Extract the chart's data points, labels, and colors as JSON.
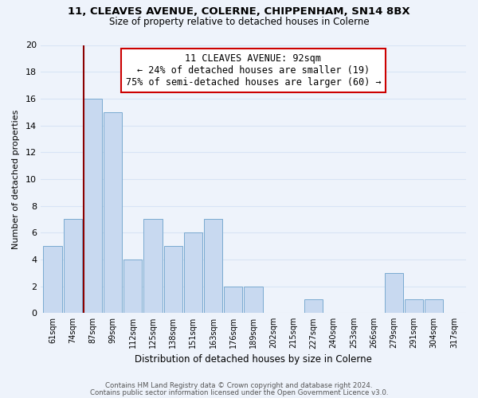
{
  "title1": "11, CLEAVES AVENUE, COLERNE, CHIPPENHAM, SN14 8BX",
  "title2": "Size of property relative to detached houses in Colerne",
  "xlabel": "Distribution of detached houses by size in Colerne",
  "ylabel": "Number of detached properties",
  "bar_labels": [
    "61sqm",
    "74sqm",
    "87sqm",
    "99sqm",
    "112sqm",
    "125sqm",
    "138sqm",
    "151sqm",
    "163sqm",
    "176sqm",
    "189sqm",
    "202sqm",
    "215sqm",
    "227sqm",
    "240sqm",
    "253sqm",
    "266sqm",
    "279sqm",
    "291sqm",
    "304sqm",
    "317sqm"
  ],
  "bar_heights": [
    5,
    7,
    16,
    15,
    4,
    7,
    5,
    6,
    7,
    2,
    2,
    0,
    0,
    1,
    0,
    0,
    0,
    3,
    1,
    1,
    0
  ],
  "bar_color": "#c8d9f0",
  "bar_edge_color": "#7aaad0",
  "ylim": [
    0,
    20
  ],
  "yticks": [
    0,
    2,
    4,
    6,
    8,
    10,
    12,
    14,
    16,
    18,
    20
  ],
  "vline_color": "#8b0000",
  "annotation_line1": "11 CLEAVES AVENUE: 92sqm",
  "annotation_line2": "← 24% of detached houses are smaller (19)",
  "annotation_line3": "75% of semi-detached houses are larger (60) →",
  "annotation_box_color": "#ffffff",
  "annotation_box_edge": "#cc0000",
  "footer1": "Contains HM Land Registry data © Crown copyright and database right 2024.",
  "footer2": "Contains public sector information licensed under the Open Government Licence v3.0.",
  "bg_color": "#eef3fb",
  "grid_color": "#d8e4f5"
}
